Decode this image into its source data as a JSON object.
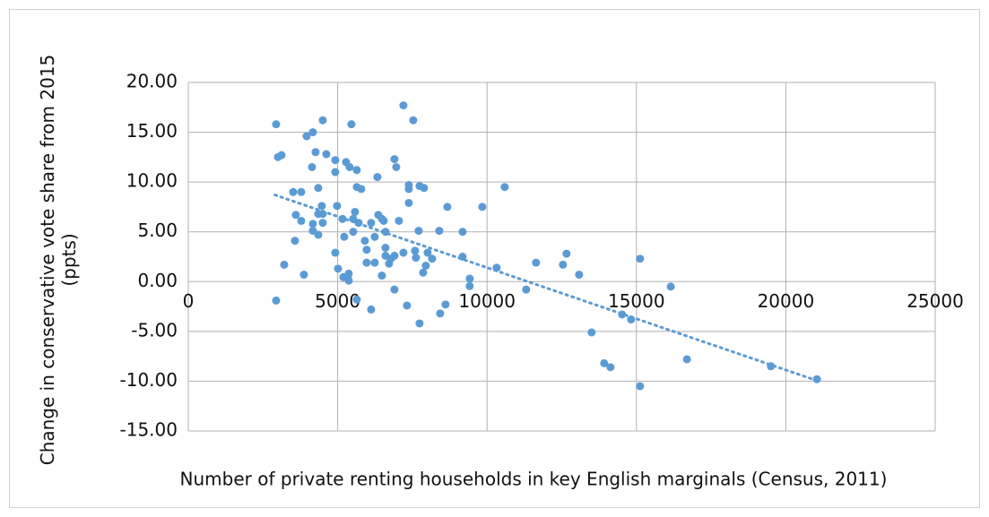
{
  "chart_data": {
    "type": "scatter",
    "x_label": "Number of private renting households in key English marginals (Census, 2011)",
    "y_label": "Change in conservative vote share from 2015 (ppts)",
    "color": "#5b9bd5",
    "grid": true,
    "xlim": [
      0,
      25000
    ],
    "xticks": [
      0,
      5000,
      10000,
      15000,
      20000,
      25000
    ],
    "ylim": [
      -15,
      20
    ],
    "yticks": [
      {
        "value": -15,
        "label": "-15.00"
      },
      {
        "value": -10,
        "label": "-10.00"
      },
      {
        "value": -5,
        "label": "-5.00"
      },
      {
        "value": 0,
        "label": "0.00"
      },
      {
        "value": 5,
        "label": "5.00"
      },
      {
        "value": 10,
        "label": "10.00"
      },
      {
        "value": 15,
        "label": "15.00"
      },
      {
        "value": 20,
        "label": "20.00"
      }
    ],
    "x": [
      2940,
      3000,
      3120,
      2940,
      3210,
      3510,
      3600,
      3780,
      3780,
      3570,
      3870,
      3960,
      4170,
      4140,
      4260,
      4170,
      4170,
      4350,
      4350,
      4350,
      4470,
      4500,
      4500,
      4500,
      4620,
      4920,
      4920,
      4920,
      4980,
      5010,
      5160,
      5220,
      5280,
      5190,
      5340,
      5370,
      5370,
      5460,
      5400,
      5520,
      5520,
      5580,
      5640,
      5640,
      5700,
      5640,
      5790,
      5910,
      5970,
      5970,
      6120,
      6120,
      6240,
      6240,
      6330,
      6360,
      6480,
      6540,
      6480,
      6600,
      6600,
      6600,
      6720,
      6780,
      6900,
      6900,
      6960,
      6900,
      7050,
      7200,
      7200,
      7320,
      7380,
      7380,
      7380,
      7530,
      7590,
      7620,
      7710,
      7740,
      7740,
      7860,
      7890,
      7950,
      8010,
      8160,
      8400,
      8430,
      8610,
      8670,
      9180,
      9180,
      9420,
      9420,
      9840,
      10320,
      10590,
      11310,
      11640,
      12540,
      12660,
      13080,
      13500,
      13920,
      14130,
      14520,
      14820,
      15120,
      15120,
      16150,
      16690,
      19500,
      21040
    ],
    "values": [
      15.8,
      12.5,
      12.7,
      -1.9,
      1.7,
      9.0,
      6.7,
      9.0,
      6.1,
      4.1,
      0.7,
      14.6,
      15.0,
      11.5,
      13.0,
      5.8,
      5.1,
      9.4,
      4.7,
      6.8,
      7.6,
      6.8,
      5.9,
      16.2,
      12.8,
      12.2,
      11.0,
      2.9,
      7.6,
      1.3,
      6.3,
      4.5,
      12.0,
      0.45,
      0.5,
      0.8,
      0.1,
      15.8,
      11.5,
      5.0,
      6.3,
      7.0,
      11.2,
      9.5,
      5.9,
      -1.8,
      9.3,
      4.1,
      3.2,
      1.9,
      -2.8,
      5.9,
      1.9,
      4.5,
      10.5,
      6.7,
      6.3,
      6.1,
      0.6,
      5.0,
      3.4,
      2.6,
      1.8,
      2.3,
      2.6,
      12.3,
      11.5,
      -0.8,
      6.1,
      17.7,
      2.9,
      -2.4,
      9.7,
      9.3,
      7.9,
      16.2,
      3.1,
      2.4,
      5.1,
      -4.2,
      9.6,
      0.9,
      9.4,
      1.6,
      2.9,
      2.3,
      5.1,
      -3.2,
      -2.3,
      7.5,
      5.0,
      2.5,
      0.3,
      -0.45,
      7.5,
      1.4,
      9.5,
      -0.8,
      1.9,
      1.7,
      2.8,
      0.7,
      -5.1,
      -8.2,
      -8.6,
      -3.3,
      -3.8,
      2.3,
      -10.5,
      -0.5,
      -7.8,
      -8.5,
      -9.8
    ],
    "trendline": {
      "x": [
        2900,
        21000
      ],
      "values": [
        8.7,
        -9.9
      ],
      "color": "#5b9bd5"
    }
  }
}
